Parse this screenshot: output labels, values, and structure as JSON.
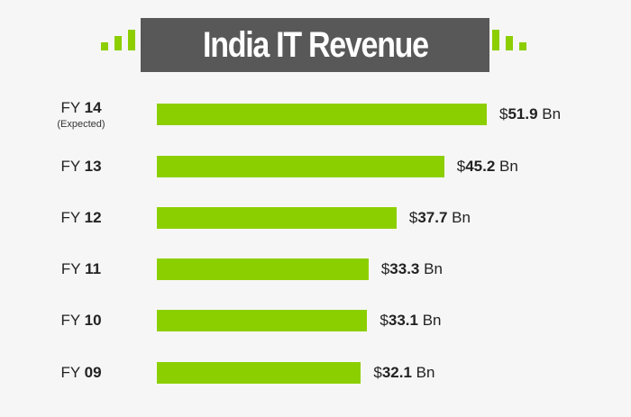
{
  "chart_data": {
    "type": "bar",
    "orientation": "horizontal",
    "title": "India IT Revenue",
    "categories": [
      {
        "prefix": "FY",
        "year": "14",
        "note": "(Expected)"
      },
      {
        "prefix": "FY",
        "year": "13",
        "note": ""
      },
      {
        "prefix": "FY",
        "year": "12",
        "note": ""
      },
      {
        "prefix": "FY",
        "year": "11",
        "note": ""
      },
      {
        "prefix": "FY",
        "year": "10",
        "note": ""
      },
      {
        "prefix": "FY",
        "year": "09",
        "note": ""
      }
    ],
    "values": [
      51.9,
      45.2,
      37.7,
      33.3,
      33.1,
      32.1
    ],
    "value_labels": [
      {
        "currency": "$",
        "amount": "51.9",
        "unit": "Bn"
      },
      {
        "currency": "$",
        "amount": "45.2",
        "unit": "Bn"
      },
      {
        "currency": "$",
        "amount": "37.7",
        "unit": "Bn"
      },
      {
        "currency": "$",
        "amount": "33.3",
        "unit": "Bn"
      },
      {
        "currency": "$",
        "amount": "33.1",
        "unit": "Bn"
      },
      {
        "currency": "$",
        "amount": "32.1",
        "unit": "Bn"
      }
    ],
    "grid": false,
    "colors": {
      "bar": "#8ccf00",
      "title_bg": "#585858",
      "background": "#f6f6f6"
    }
  }
}
